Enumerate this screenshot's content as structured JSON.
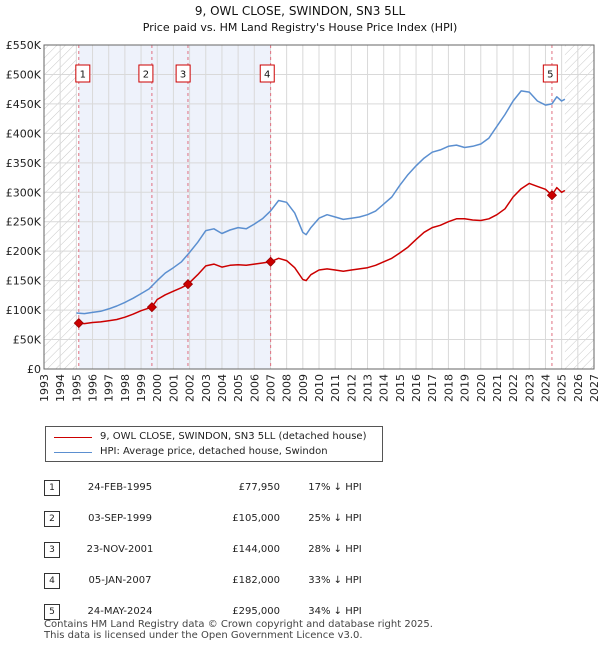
{
  "colors": {
    "property": "#cc0000",
    "hpi": "#5b8fd0",
    "shade": "#eef2fb",
    "hatch": "#c8c8c8",
    "marker": "#cc0000",
    "grid": "#d9d9d9",
    "vline": "#e07080"
  },
  "chart_data": {
    "type": "line",
    "title": "9, OWL CLOSE, SWINDON, SN3 5LL",
    "subtitle": "Price paid vs. HM Land Registry's House Price Index (HPI)",
    "xlabel": "",
    "ylabel": "",
    "xlim": [
      1993,
      2027
    ],
    "ylim": [
      0,
      550000
    ],
    "x_ticks": [
      1993,
      1994,
      1995,
      1996,
      1997,
      1998,
      1999,
      2000,
      2001,
      2002,
      2003,
      2004,
      2005,
      2006,
      2007,
      2008,
      2009,
      2010,
      2011,
      2012,
      2013,
      2014,
      2015,
      2016,
      2017,
      2018,
      2019,
      2020,
      2021,
      2022,
      2023,
      2024,
      2025,
      2026,
      2027
    ],
    "y_ticks": [
      {
        "value": 0,
        "label": "£0"
      },
      {
        "value": 50000,
        "label": "£50K"
      },
      {
        "value": 100000,
        "label": "£100K"
      },
      {
        "value": 150000,
        "label": "£150K"
      },
      {
        "value": 200000,
        "label": "£200K"
      },
      {
        "value": 250000,
        "label": "£250K"
      },
      {
        "value": 300000,
        "label": "£300K"
      },
      {
        "value": 350000,
        "label": "£350K"
      },
      {
        "value": 400000,
        "label": "£400K"
      },
      {
        "value": 450000,
        "label": "£450K"
      },
      {
        "value": 500000,
        "label": "£500K"
      },
      {
        "value": 550000,
        "label": "£550K"
      }
    ],
    "shaded_ranges": [
      [
        1995.15,
        2007.02
      ]
    ],
    "hatched_before": 1995.0,
    "hatched_after": 2025.2,
    "series": [
      {
        "name": "9, OWL CLOSE, SWINDON, SN3 5LL (detached house)",
        "color": "#cc0000",
        "x": [
          1995.15,
          1995.5,
          1996.0,
          1996.5,
          1997.0,
          1997.5,
          1998.0,
          1998.5,
          1999.0,
          1999.67,
          2000.0,
          2000.5,
          2001.0,
          2001.5,
          2001.9,
          2002.5,
          2003.0,
          2003.5,
          2004.0,
          2004.5,
          2005.0,
          2005.5,
          2006.0,
          2006.5,
          2007.01,
          2007.5,
          2008.0,
          2008.5,
          2009.0,
          2009.2,
          2009.5,
          2010.0,
          2010.5,
          2011.0,
          2011.5,
          2012.0,
          2012.5,
          2013.0,
          2013.5,
          2014.0,
          2014.5,
          2015.0,
          2015.5,
          2016.0,
          2016.5,
          2017.0,
          2017.5,
          2018.0,
          2018.5,
          2019.0,
          2019.5,
          2020.0,
          2020.5,
          2021.0,
          2021.5,
          2022.0,
          2022.5,
          2023.0,
          2023.5,
          2024.0,
          2024.4,
          2024.7,
          2025.0,
          2025.2
        ],
        "y": [
          77950,
          77000,
          79000,
          80000,
          82000,
          84000,
          88000,
          93000,
          99000,
          105000,
          118000,
          126000,
          132000,
          138000,
          144000,
          160000,
          175000,
          178000,
          173000,
          176000,
          177000,
          176000,
          178000,
          180000,
          182000,
          188000,
          184000,
          172000,
          152000,
          150000,
          160000,
          168000,
          170000,
          168000,
          166000,
          168000,
          170000,
          172000,
          176000,
          182000,
          188000,
          197000,
          207000,
          220000,
          232000,
          240000,
          244000,
          250000,
          255000,
          255000,
          253000,
          252000,
          255000,
          262000,
          272000,
          292000,
          306000,
          315000,
          310000,
          305000,
          295000,
          308000,
          300000,
          303000
        ]
      },
      {
        "name": "HPI: Average price, detached house, Swindon",
        "color": "#5b8fd0",
        "x": [
          1995.0,
          1995.5,
          1996.0,
          1996.5,
          1997.0,
          1997.5,
          1998.0,
          1998.5,
          1999.0,
          1999.5,
          2000.0,
          2000.5,
          2001.0,
          2001.5,
          2002.0,
          2002.5,
          2003.0,
          2003.5,
          2004.0,
          2004.5,
          2005.0,
          2005.5,
          2006.0,
          2006.5,
          2007.0,
          2007.5,
          2008.0,
          2008.5,
          2009.0,
          2009.2,
          2009.5,
          2010.0,
          2010.5,
          2011.0,
          2011.5,
          2012.0,
          2012.5,
          2013.0,
          2013.5,
          2014.0,
          2014.5,
          2015.0,
          2015.5,
          2016.0,
          2016.5,
          2017.0,
          2017.5,
          2018.0,
          2018.5,
          2019.0,
          2019.5,
          2020.0,
          2020.5,
          2021.0,
          2021.5,
          2022.0,
          2022.5,
          2023.0,
          2023.5,
          2024.0,
          2024.4,
          2024.7,
          2025.0,
          2025.2
        ],
        "y": [
          95000,
          94000,
          96000,
          98000,
          102000,
          107000,
          113000,
          120000,
          128000,
          136000,
          150000,
          163000,
          172000,
          182000,
          198000,
          215000,
          235000,
          238000,
          230000,
          236000,
          240000,
          238000,
          246000,
          255000,
          268000,
          286000,
          283000,
          265000,
          232000,
          228000,
          240000,
          256000,
          262000,
          258000,
          254000,
          256000,
          258000,
          262000,
          268000,
          280000,
          292000,
          312000,
          330000,
          345000,
          358000,
          368000,
          372000,
          378000,
          380000,
          376000,
          378000,
          382000,
          392000,
          412000,
          432000,
          455000,
          472000,
          470000,
          455000,
          448000,
          450000,
          462000,
          455000,
          458000
        ]
      }
    ],
    "sales": [
      {
        "id": "1",
        "x": 1995.15,
        "y": 77950,
        "label_x": 1995.4
      },
      {
        "id": "2",
        "x": 1999.67,
        "y": 105000,
        "label_x": 1999.3
      },
      {
        "id": "3",
        "x": 2001.9,
        "y": 144000,
        "label_x": 2001.6
      },
      {
        "id": "4",
        "x": 2007.01,
        "y": 182000,
        "label_x": 2006.8
      },
      {
        "id": "5",
        "x": 2024.4,
        "y": 295000,
        "label_x": 2024.3
      }
    ]
  },
  "legend": {
    "property_label": "9, OWL CLOSE, SWINDON, SN3 5LL (detached house)",
    "hpi_label": "HPI: Average price, detached house, Swindon"
  },
  "table": [
    {
      "num": "1",
      "date": "24-FEB-1995",
      "price": "£77,950",
      "hpi": "17% ↓ HPI"
    },
    {
      "num": "2",
      "date": "03-SEP-1999",
      "price": "£105,000",
      "hpi": "25% ↓ HPI"
    },
    {
      "num": "3",
      "date": "23-NOV-2001",
      "price": "£144,000",
      "hpi": "28% ↓ HPI"
    },
    {
      "num": "4",
      "date": "05-JAN-2007",
      "price": "£182,000",
      "hpi": "33% ↓ HPI"
    },
    {
      "num": "5",
      "date": "24-MAY-2024",
      "price": "£295,000",
      "hpi": "34% ↓ HPI"
    }
  ],
  "footer": {
    "line1": "Contains HM Land Registry data © Crown copyright and database right 2025.",
    "line2": "This data is licensed under the Open Government Licence v3.0."
  }
}
